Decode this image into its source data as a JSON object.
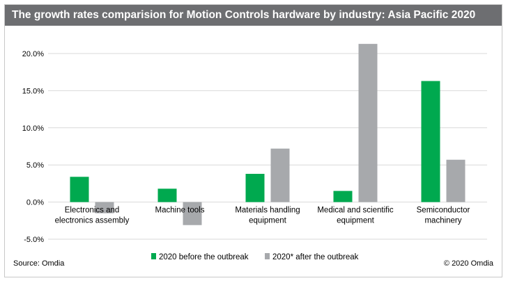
{
  "chart_data": {
    "type": "bar",
    "title": "The growth rates comparision for Motion Controls hardware by industry: Asia Pacific 2020",
    "categories": [
      [
        "Electronics and",
        "electronics assembly"
      ],
      [
        "Machine tools"
      ],
      [
        "Materials handling",
        "equipment"
      ],
      [
        "Medical and scientific",
        "equipment"
      ],
      [
        "Semiconductor",
        "machinery"
      ]
    ],
    "series": [
      {
        "name": "2020 before the outbreak",
        "color": "#00a94f",
        "values": [
          3.4,
          1.8,
          3.8,
          1.5,
          16.3
        ]
      },
      {
        "name": "2020* after the outbreak",
        "color": "#a7a9ac",
        "values": [
          -1.5,
          -3.1,
          7.2,
          21.3,
          5.7
        ]
      }
    ],
    "ylim": [
      -5,
      20
    ],
    "yticks": [
      -5,
      0,
      5,
      10,
      15,
      20
    ],
    "ytick_labels": [
      "-5.0%",
      "0.0%",
      "5.0%",
      "10.0%",
      "15.0%",
      "20.0%"
    ],
    "grid": true,
    "legend": "bottom",
    "xlabel": "",
    "ylabel": ""
  },
  "footer": {
    "source": "Source: Omdia",
    "copyright": "© 2020 Omdia"
  }
}
